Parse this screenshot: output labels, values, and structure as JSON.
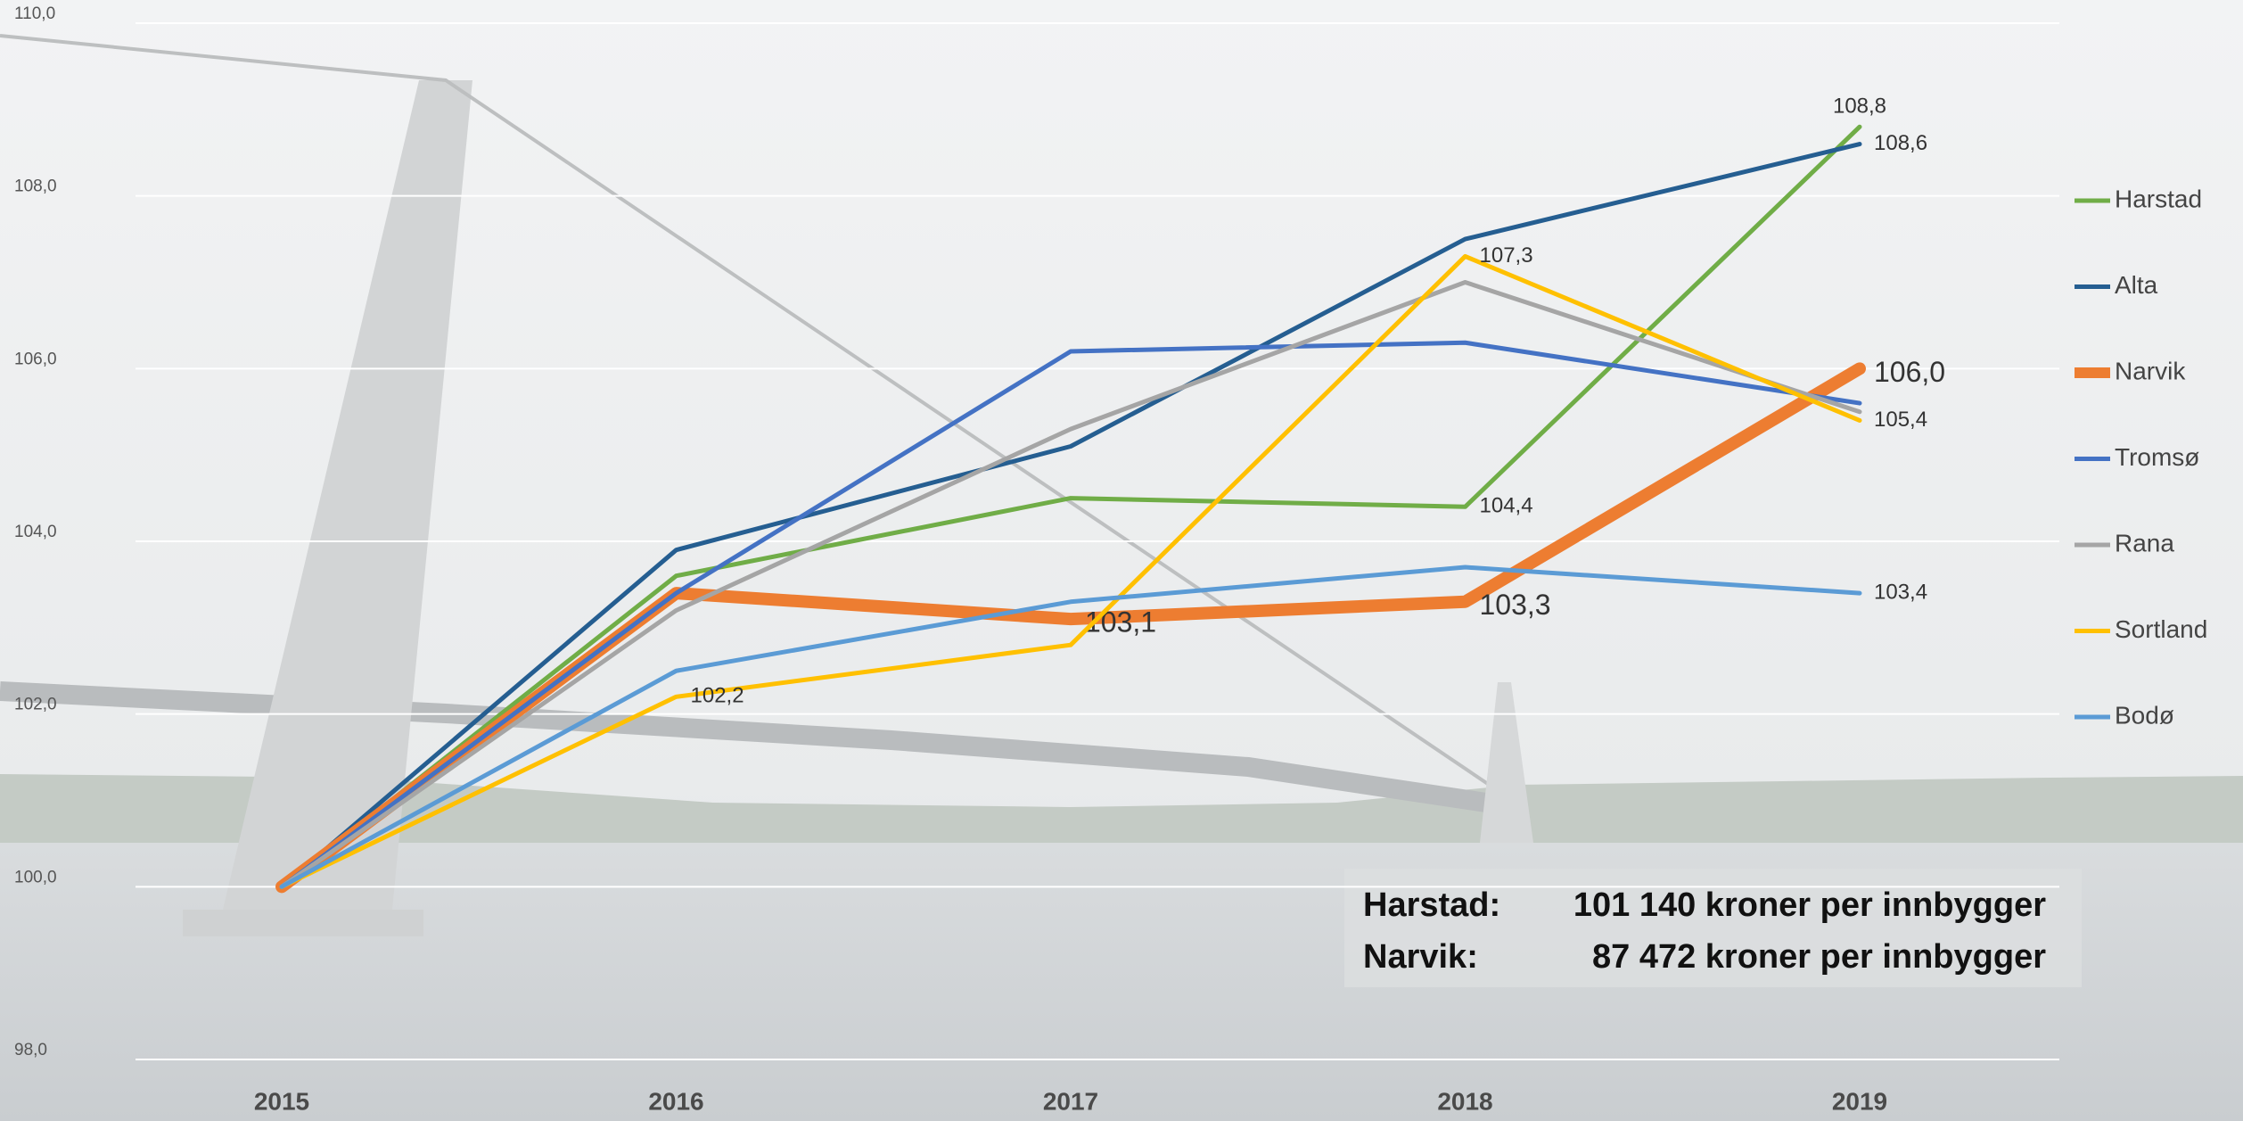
{
  "chart_data": {
    "type": "line",
    "categories": [
      "2015",
      "2016",
      "2017",
      "2018",
      "2019"
    ],
    "ylim": [
      98,
      110
    ],
    "yticks": [
      {
        "value": 98,
        "label": "98,0"
      },
      {
        "value": 100,
        "label": "100,0"
      },
      {
        "value": 102,
        "label": "102,0"
      },
      {
        "value": 104,
        "label": "104,0"
      },
      {
        "value": 106,
        "label": "106,0"
      },
      {
        "value": 108,
        "label": "108,0"
      },
      {
        "value": 110,
        "label": "110,0"
      }
    ],
    "grid": true,
    "legend": "right",
    "series": [
      {
        "name": "Harstad",
        "color": "#70ad47",
        "values": [
          100,
          103.6,
          104.5,
          104.4,
          108.8
        ],
        "value_labels": [
          null,
          null,
          null,
          "104,4",
          "108,8"
        ]
      },
      {
        "name": "Alta",
        "color": "#255e91",
        "values": [
          100,
          103.9,
          105.1,
          107.5,
          108.6
        ],
        "value_labels": [
          null,
          null,
          null,
          null,
          "108,6"
        ]
      },
      {
        "name": "Narvik",
        "color": "#ed7d31",
        "values": [
          100,
          103.4,
          103.1,
          103.3,
          106.0
        ],
        "value_labels": [
          null,
          null,
          "103,1",
          "103,3",
          "106,0"
        ]
      },
      {
        "name": "Tromsø",
        "color": "#4472c4",
        "values": [
          100,
          103.4,
          106.2,
          106.3,
          105.6
        ]
      },
      {
        "name": "Rana",
        "color": "#a5a5a5",
        "values": [
          100,
          103.2,
          105.3,
          107.0,
          105.5
        ]
      },
      {
        "name": "Sortland",
        "color": "#ffc000",
        "values": [
          100,
          102.2,
          102.8,
          107.3,
          105.4
        ],
        "value_labels": [
          null,
          "102,2",
          null,
          "107,3",
          "105,4"
        ]
      },
      {
        "name": "Bodø",
        "color": "#5b9bd5",
        "values": [
          100,
          102.5,
          103.3,
          103.7,
          103.4
        ],
        "value_labels": [
          null,
          null,
          null,
          null,
          "103,4"
        ]
      }
    ],
    "annotations": [
      {
        "city": "Harstad:",
        "text": "101 140 kroner per innbygger"
      },
      {
        "city": "Narvik:",
        "text": "87 472 kroner per innbygger"
      }
    ]
  }
}
